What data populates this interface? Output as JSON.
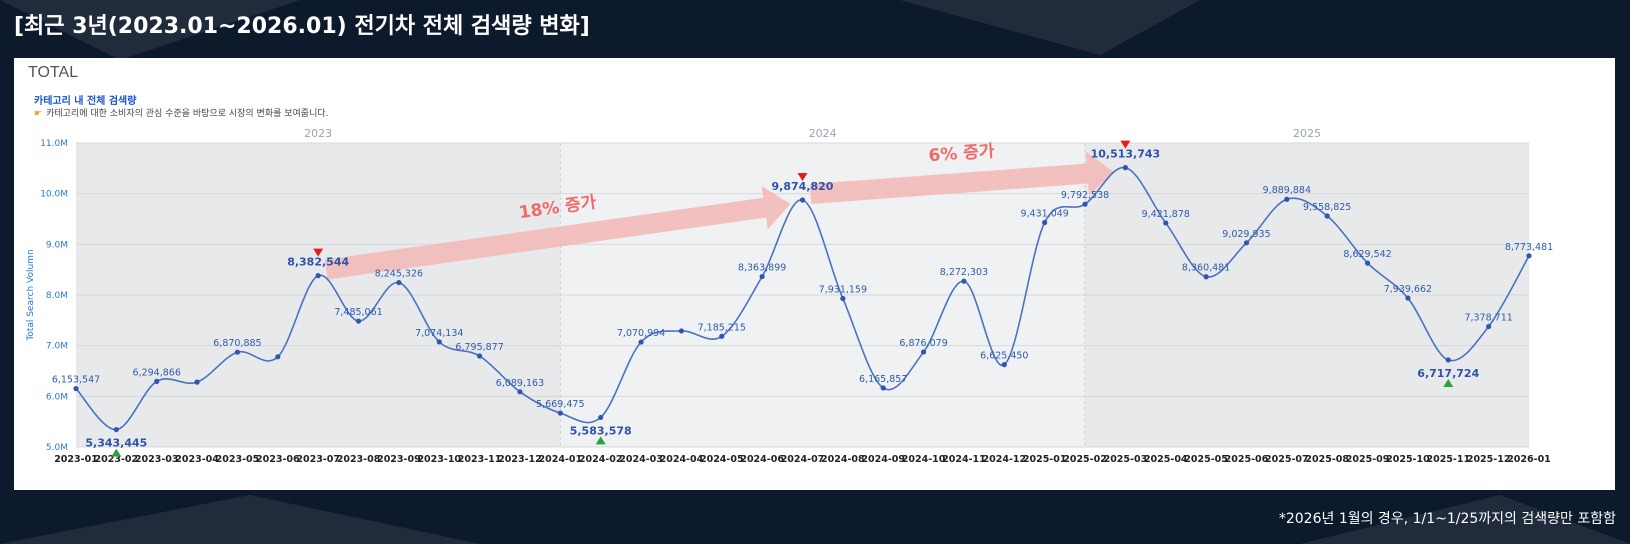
{
  "page": {
    "title": "[최근 3년(2023.01~2026.01) 전기차 전체 검색량 변화]",
    "footnote": "*2026년 1월의 경우, 1/1~1/25까지의 검색량만 포함함"
  },
  "panel": {
    "title": "TOTAL",
    "subtitle": "카테고리 내 전체 검색량",
    "description": "카테고리에 대한 소비자의 관심 수준을 바탕으로 시장의 변화를 보여줍니다."
  },
  "colors": {
    "line": "#4a72c4",
    "label": "#2f5dab",
    "highlight": "#2e53a8",
    "max_marker": "#e21d1d",
    "min_marker": "#2aa13b",
    "arrow": "#f3b7b7",
    "arrow_text": "#f06a6a",
    "axis_label": "#2a78d3"
  },
  "chart_data": {
    "type": "line",
    "title": "TOTAL",
    "ylabel": "Total Search Volumn",
    "ylim": [
      5000000,
      11000000
    ],
    "yticks": [
      {
        "value": 5000000,
        "label": "5.0M"
      },
      {
        "value": 6000000,
        "label": "6.0M"
      },
      {
        "value": 7000000,
        "label": "7.0M"
      },
      {
        "value": 8000000,
        "label": "8.0M"
      },
      {
        "value": 9000000,
        "label": "9.0M"
      },
      {
        "value": 10000000,
        "label": "10.0M"
      },
      {
        "value": 11000000,
        "label": "11.0M"
      }
    ],
    "year_bands": [
      {
        "label": "2023",
        "start": 0,
        "end": 12
      },
      {
        "label": "2024",
        "start": 12,
        "end": 25
      },
      {
        "label": "2025",
        "start": 25,
        "end": 36
      }
    ],
    "categories": [
      "2023-01",
      "2023-02",
      "2023-03",
      "2023-04",
      "2023-05",
      "2023-06",
      "2023-07",
      "2023-08",
      "2023-09",
      "2023-10",
      "2023-11",
      "2023-12",
      "2024-01",
      "2024-02",
      "2024-03",
      "2024-04",
      "2024-05",
      "2024-06",
      "2024-07",
      "2024-08",
      "2024-09",
      "2024-10",
      "2024-11",
      "2024-12",
      "2025-01",
      "2025-02",
      "2025-03",
      "2025-04",
      "2025-05",
      "2025-06",
      "2025-07",
      "2025-08",
      "2025-09",
      "2025-10",
      "2025-11",
      "2025-12",
      "2026-01"
    ],
    "values": [
      6153547,
      5343445,
      6294866,
      6280000,
      6870885,
      6780000,
      8382544,
      7485061,
      8245326,
      7074134,
      6795877,
      6089163,
      5669475,
      5583578,
      7070994,
      7290000,
      7185215,
      8363899,
      9874820,
      7931159,
      6165857,
      6876079,
      8272303,
      6625450,
      9431049,
      9792538,
      10513743,
      9421878,
      8360481,
      9029935,
      9889884,
      9558825,
      8629542,
      7939662,
      6717724,
      7378711,
      8773481
    ],
    "labels": [
      {
        "index": 0,
        "text": "6,153,547",
        "style": "normal"
      },
      {
        "index": 1,
        "text": "5,343,445",
        "style": "min"
      },
      {
        "index": 2,
        "text": "6,294,866",
        "style": "normal"
      },
      {
        "index": 4,
        "text": "6,870,885",
        "style": "normal"
      },
      {
        "index": 6,
        "text": "8,382,544",
        "style": "max"
      },
      {
        "index": 7,
        "text": "7,485,061",
        "style": "normal"
      },
      {
        "index": 8,
        "text": "8,245,326",
        "style": "normal"
      },
      {
        "index": 9,
        "text": "7,074,134",
        "style": "normal"
      },
      {
        "index": 10,
        "text": "6,795,877",
        "style": "normal"
      },
      {
        "index": 11,
        "text": "6,089,163",
        "style": "normal"
      },
      {
        "index": 12,
        "text": "5,669,475",
        "style": "normal"
      },
      {
        "index": 13,
        "text": "5,583,578",
        "style": "min"
      },
      {
        "index": 14,
        "text": "7,070,994",
        "style": "normal"
      },
      {
        "index": 16,
        "text": "7,185,215",
        "style": "normal"
      },
      {
        "index": 17,
        "text": "8,363,899",
        "style": "normal"
      },
      {
        "index": 18,
        "text": "9,874,820",
        "style": "max"
      },
      {
        "index": 19,
        "text": "7,931,159",
        "style": "normal"
      },
      {
        "index": 20,
        "text": "6,165,857",
        "style": "normal"
      },
      {
        "index": 21,
        "text": "6,876,079",
        "style": "normal"
      },
      {
        "index": 22,
        "text": "8,272,303",
        "style": "normal"
      },
      {
        "index": 23,
        "text": "6,625,450",
        "style": "normal"
      },
      {
        "index": 24,
        "text": "9,431,049",
        "style": "normal"
      },
      {
        "index": 25,
        "text": "9,792,538",
        "style": "normal"
      },
      {
        "index": 26,
        "text": "10,513,743",
        "style": "max"
      },
      {
        "index": 27,
        "text": "9,421,878",
        "style": "normal"
      },
      {
        "index": 28,
        "text": "8,360,481",
        "style": "normal"
      },
      {
        "index": 29,
        "text": "9,029,935",
        "style": "normal"
      },
      {
        "index": 30,
        "text": "9,889,884",
        "style": "normal"
      },
      {
        "index": 31,
        "text": "9,558,825",
        "style": "normal"
      },
      {
        "index": 32,
        "text": "8,629,542",
        "style": "normal"
      },
      {
        "index": 33,
        "text": "7,939,662",
        "style": "normal"
      },
      {
        "index": 34,
        "text": "6,717,724",
        "style": "min"
      },
      {
        "index": 35,
        "text": "7,378,711",
        "style": "normal"
      },
      {
        "index": 36,
        "text": "8,773,481",
        "style": "normal"
      }
    ],
    "annotations": [
      {
        "text": "18% 증가",
        "from_index": 6,
        "to_index": 18
      },
      {
        "text": "6% 증가",
        "from_index": 18,
        "to_index": 26
      }
    ]
  }
}
